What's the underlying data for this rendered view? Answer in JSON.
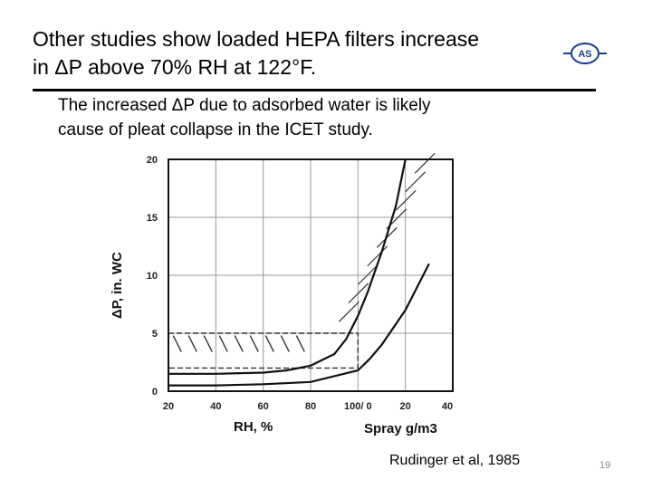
{
  "slide": {
    "title_line1": "Other studies show loaded HEPA filters increase",
    "title_line2": "in ΔP above 70% RH at 122°F.",
    "subtitle_line1": "The increased ΔP due to  adsorbed water is likely",
    "subtitle_line2": "cause of pleat  collapse in the ICET study.",
    "logo_text": "AS",
    "citation": "Rudinger et al, 1985",
    "page_number": "19"
  },
  "chart_data": {
    "type": "line",
    "ylabel": "ΔP, in. WC",
    "xlabel_left": "RH, %",
    "xlabel_right": "Spray g/m3",
    "yticks": [
      "0",
      "5",
      "10",
      "15",
      "20"
    ],
    "xticks_rh": [
      "20",
      "40",
      "60",
      "80",
      "100/ 0"
    ],
    "xticks_spray": [
      "20",
      "40"
    ],
    "ylim": [
      0,
      20
    ],
    "grid": true,
    "series": [
      {
        "x": [
          20,
          40,
          60,
          70,
          80,
          90,
          95,
          100,
          104,
          110,
          116,
          120
        ],
        "y": [
          1.5,
          1.5,
          1.6,
          1.8,
          2.2,
          3.2,
          4.5,
          6.5,
          8.5,
          12,
          16,
          20
        ]
      },
      {
        "x": [
          20,
          40,
          60,
          80,
          100,
          105,
          110,
          120,
          130
        ],
        "y": [
          0.5,
          0.5,
          0.6,
          0.8,
          1.8,
          2.8,
          4,
          7,
          11
        ]
      }
    ]
  }
}
